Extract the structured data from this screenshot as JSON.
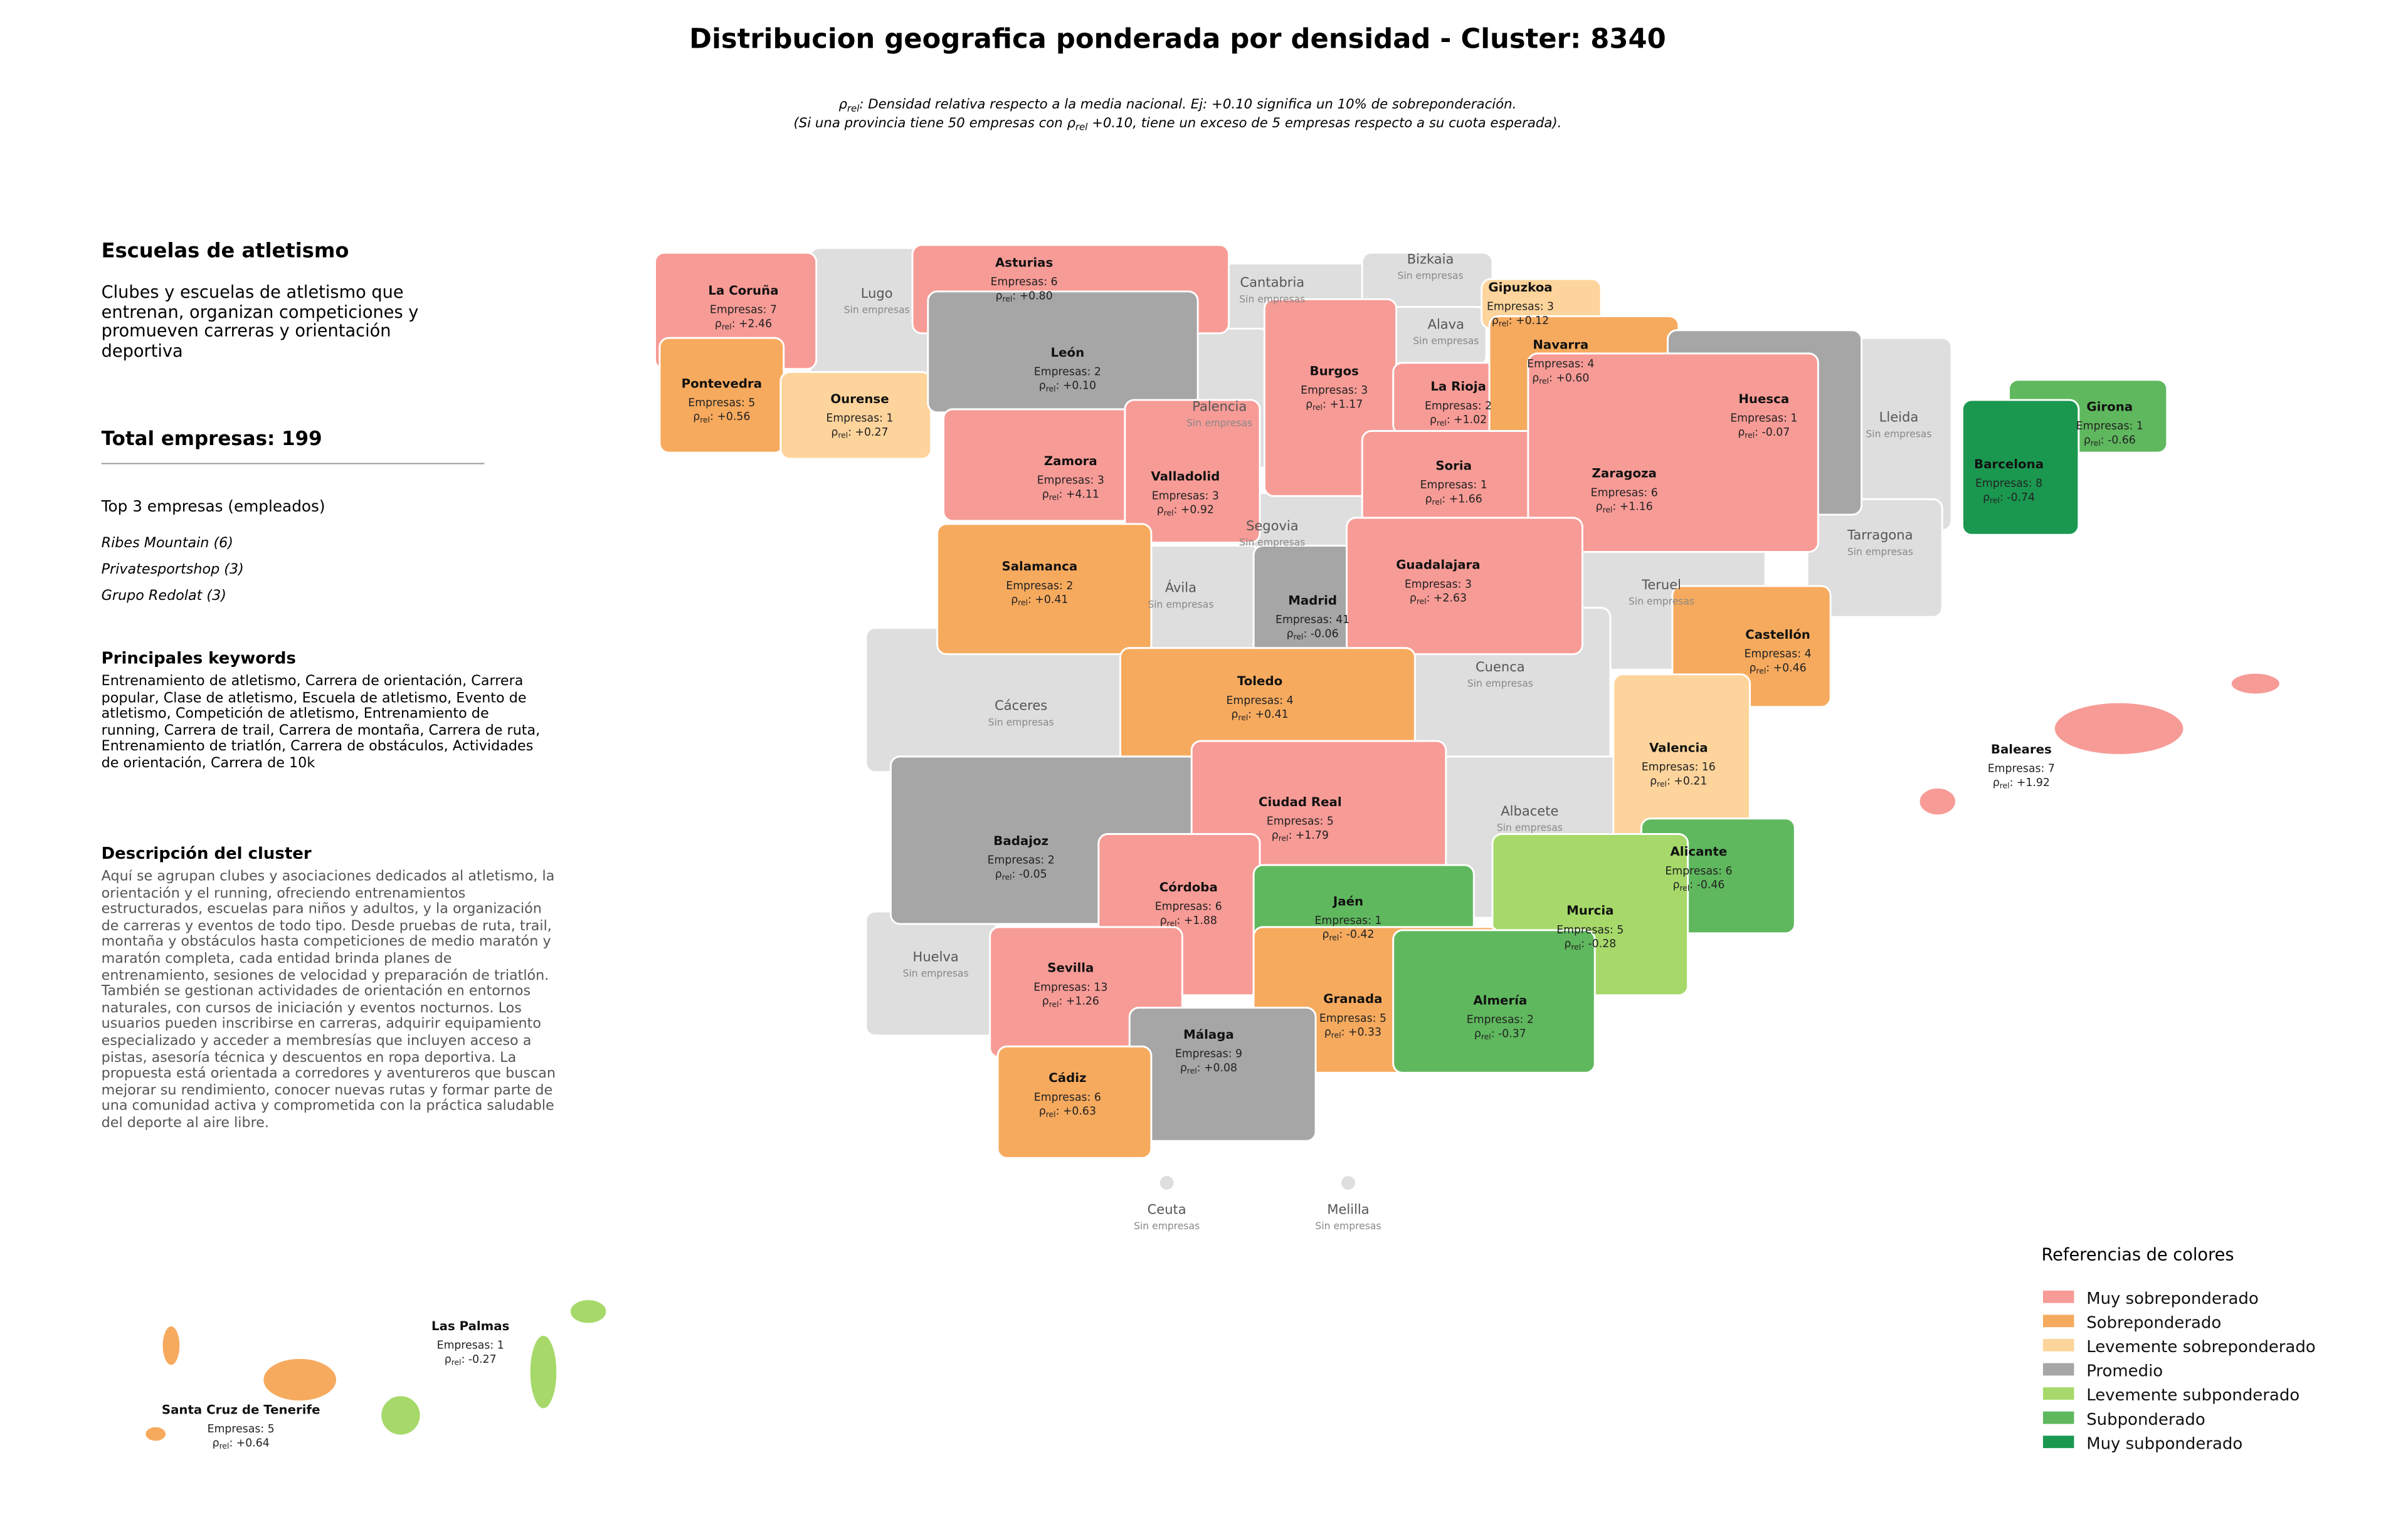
{
  "title": "Distribucion geografica ponderada por densidad - Cluster: 8340",
  "subtitle": {
    "symbol": "ρ",
    "sub": "rel",
    "line1": ": Densidad relativa respecto a la media nacional. Ej: +0.10 significa un 10% de sobreponderación.",
    "line2_start": "(Si una provincia tiene 50 empresas con ",
    "line2_end": " +0.10, tiene un exceso de 5 empresas respecto a su cuota esperada)."
  },
  "panel": {
    "heading": "Escuelas de atletismo",
    "description": "Clubes y escuelas de atletismo que entrenan, organizan competiciones y promueven carreras y orientación deportiva",
    "total_label": "Total empresas:",
    "total": 199,
    "top_heading": "Top 3 empresas (empleados)",
    "top": [
      "Ribes Mountain (6)",
      "Privatesportshop (3)",
      "Grupo Redolat (3)"
    ],
    "keywords_heading": "Principales keywords",
    "keywords": "Entrenamiento de atletismo, Carrera de orientación, Carrera popular, Clase de atletismo, Escuela de atletismo, Evento de atletismo, Competición de atletismo, Entrenamiento de running, Carrera de trail, Carrera de montaña, Carrera de ruta, Entrenamiento de triatlón, Carrera de obstáculos, Actividades de orientación, Carrera de 10k",
    "cluster_heading": "Descripción del cluster",
    "cluster_text": "Aquí se agrupan clubes y asociaciones dedicados al atletismo, la orientación y el running, ofreciendo entrenamientos estructurados, escuelas para niños y adultos, y la organización de carreras y eventos de todo tipo. Desde pruebas de ruta, trail, montaña y obstáculos hasta competiciones de medio maratón y maratón completa, cada entidad brinda planes de entrenamiento, sesiones de velocidad y preparación de triatlón. También se gestionan actividades de orientación en entornos naturales, con cursos de iniciación y eventos nocturnos. Los usuarios pueden inscribirse en carreras, adquirir equipamiento especializado y acceder a membresías que incluyen acceso a pistas, asesoría técnica y descuentos en ropa deportiva. La propuesta está orientada a corredores y aventureros que buscan mejorar su rendimiento, conocer nuevas rutas y formar parte de una comunidad activa y comprometida con la práctica saludable del deporte al aire libre."
  },
  "map": {
    "empresas_label": "Empresas:",
    "rho_symbol": "ρ",
    "rho_sub": "rel",
    "rho_colon": ":",
    "none_label": "Sin empresas",
    "none_color": "#dedede",
    "legend_title": "Referencias de colores",
    "legend": [
      {
        "name": "Muy sobreponderado",
        "color": "#f79b96"
      },
      {
        "name": "Sobreponderado",
        "color": "#f6aa5e"
      },
      {
        "name": "Levemente sobreponderado",
        "color": "#fdd49b"
      },
      {
        "name": "Promedio",
        "color": "#a6a6a6"
      },
      {
        "name": "Levemente subponderado",
        "color": "#a6d96a"
      },
      {
        "name": "Subponderado",
        "color": "#5fb85e"
      },
      {
        "name": "Muy subponderado",
        "color": "#1a9850"
      }
    ],
    "provinces": [
      {
        "name": "Lugo",
        "empresas": null,
        "rho": null,
        "rho_label": null,
        "level": null
      },
      {
        "name": "Cantabria",
        "empresas": null,
        "rho": null,
        "rho_label": null,
        "level": null
      },
      {
        "name": "Bizkaia",
        "empresas": null,
        "rho": null,
        "rho_label": null,
        "level": null
      },
      {
        "name": "Palencia",
        "empresas": null,
        "rho": null,
        "rho_label": null,
        "level": null
      },
      {
        "name": "Alava",
        "empresas": null,
        "rho": null,
        "rho_label": null,
        "level": null
      },
      {
        "name": "Lleida",
        "empresas": null,
        "rho": null,
        "rho_label": null,
        "level": null
      },
      {
        "name": "Tarragona",
        "empresas": null,
        "rho": null,
        "rho_label": null,
        "level": null
      },
      {
        "name": "Segovia",
        "empresas": null,
        "rho": null,
        "rho_label": null,
        "level": null
      },
      {
        "name": "Ávila",
        "empresas": null,
        "rho": null,
        "rho_label": null,
        "level": null
      },
      {
        "name": "Teruel",
        "empresas": null,
        "rho": null,
        "rho_label": null,
        "level": null
      },
      {
        "name": "Cáceres",
        "empresas": null,
        "rho": null,
        "rho_label": null,
        "level": null
      },
      {
        "name": "Cuenca",
        "empresas": null,
        "rho": null,
        "rho_label": null,
        "level": null
      },
      {
        "name": "Albacete",
        "empresas": null,
        "rho": null,
        "rho_label": null,
        "level": null
      },
      {
        "name": "Huelva",
        "empresas": null,
        "rho": null,
        "rho_label": null,
        "level": null
      },
      {
        "name": "Ceuta",
        "empresas": null,
        "rho": null,
        "rho_label": null,
        "level": null
      },
      {
        "name": "Melilla",
        "empresas": null,
        "rho": null,
        "rho_label": null,
        "level": null
      },
      {
        "name": "La Coruña",
        "empresas": 7,
        "rho": 2.46,
        "rho_label": "+2.46",
        "level": 0
      },
      {
        "name": "Asturias",
        "empresas": 6,
        "rho": 0.8,
        "rho_label": "+0.80",
        "level": 0
      },
      {
        "name": "Gipuzkoa",
        "empresas": 3,
        "rho": 0.12,
        "rho_label": "+0.12",
        "level": 2
      },
      {
        "name": "Pontevedra",
        "empresas": 5,
        "rho": 0.56,
        "rho_label": "+0.56",
        "level": 1
      },
      {
        "name": "Ourense",
        "empresas": 1,
        "rho": 0.27,
        "rho_label": "+0.27",
        "level": 2
      },
      {
        "name": "León",
        "empresas": 2,
        "rho": 0.1,
        "rho_label": "+0.10",
        "level": 3
      },
      {
        "name": "Burgos",
        "empresas": 3,
        "rho": 1.17,
        "rho_label": "+1.17",
        "level": 0
      },
      {
        "name": "La Rioja",
        "empresas": 2,
        "rho": 1.02,
        "rho_label": "+1.02",
        "level": 0
      },
      {
        "name": "Navarra",
        "empresas": 4,
        "rho": 0.6,
        "rho_label": "+0.60",
        "level": 1
      },
      {
        "name": "Huesca",
        "empresas": 1,
        "rho": -0.07,
        "rho_label": "-0.07",
        "level": 3
      },
      {
        "name": "Girona",
        "empresas": 1,
        "rho": -0.66,
        "rho_label": "-0.66",
        "level": 5
      },
      {
        "name": "Barcelona",
        "empresas": 8,
        "rho": -0.74,
        "rho_label": "-0.74",
        "level": 6
      },
      {
        "name": "Zamora",
        "empresas": 3,
        "rho": 4.11,
        "rho_label": "+4.11",
        "level": 0
      },
      {
        "name": "Valladolid",
        "empresas": 3,
        "rho": 0.92,
        "rho_label": "+0.92",
        "level": 0
      },
      {
        "name": "Soria",
        "empresas": 1,
        "rho": 1.66,
        "rho_label": "+1.66",
        "level": 0
      },
      {
        "name": "Zaragoza",
        "empresas": 6,
        "rho": 1.16,
        "rho_label": "+1.16",
        "level": 0
      },
      {
        "name": "Salamanca",
        "empresas": 2,
        "rho": 0.41,
        "rho_label": "+0.41",
        "level": 1
      },
      {
        "name": "Madrid",
        "empresas": 41,
        "rho": -0.06,
        "rho_label": "-0.06",
        "level": 3
      },
      {
        "name": "Guadalajara",
        "empresas": 3,
        "rho": 2.63,
        "rho_label": "+2.63",
        "level": 0
      },
      {
        "name": "Castellón",
        "empresas": 4,
        "rho": 0.46,
        "rho_label": "+0.46",
        "level": 1
      },
      {
        "name": "Toledo",
        "empresas": 4,
        "rho": 0.41,
        "rho_label": "+0.41",
        "level": 1
      },
      {
        "name": "Valencia",
        "empresas": 16,
        "rho": 0.21,
        "rho_label": "+0.21",
        "level": 2
      },
      {
        "name": "Baleares",
        "empresas": 7,
        "rho": 1.92,
        "rho_label": "+1.92",
        "level": 0
      },
      {
        "name": "Badajoz",
        "empresas": 2,
        "rho": -0.05,
        "rho_label": "-0.05",
        "level": 3
      },
      {
        "name": "Ciudad Real",
        "empresas": 5,
        "rho": 1.79,
        "rho_label": "+1.79",
        "level": 0
      },
      {
        "name": "Alicante",
        "empresas": 6,
        "rho": -0.46,
        "rho_label": "-0.46",
        "level": 5
      },
      {
        "name": "Córdoba",
        "empresas": 6,
        "rho": 1.88,
        "rho_label": "+1.88",
        "level": 0
      },
      {
        "name": "Jaén",
        "empresas": 1,
        "rho": -0.42,
        "rho_label": "-0.42",
        "level": 5
      },
      {
        "name": "Murcia",
        "empresas": 5,
        "rho": -0.28,
        "rho_label": "-0.28",
        "level": 4
      },
      {
        "name": "Sevilla",
        "empresas": 13,
        "rho": 1.26,
        "rho_label": "+1.26",
        "level": 0
      },
      {
        "name": "Granada",
        "empresas": 5,
        "rho": 0.33,
        "rho_label": "+0.33",
        "level": 1
      },
      {
        "name": "Almería",
        "empresas": 2,
        "rho": -0.37,
        "rho_label": "-0.37",
        "level": 5
      },
      {
        "name": "Málaga",
        "empresas": 9,
        "rho": 0.08,
        "rho_label": "+0.08",
        "level": 3
      },
      {
        "name": "Cádiz",
        "empresas": 6,
        "rho": 0.63,
        "rho_label": "+0.63",
        "level": 1
      },
      {
        "name": "Las Palmas",
        "empresas": 1,
        "rho": -0.27,
        "rho_label": "-0.27",
        "level": 4
      },
      {
        "name": "Santa Cruz de Tenerife",
        "empresas": 5,
        "rho": 0.64,
        "rho_label": "+0.64",
        "level": 1
      }
    ]
  }
}
